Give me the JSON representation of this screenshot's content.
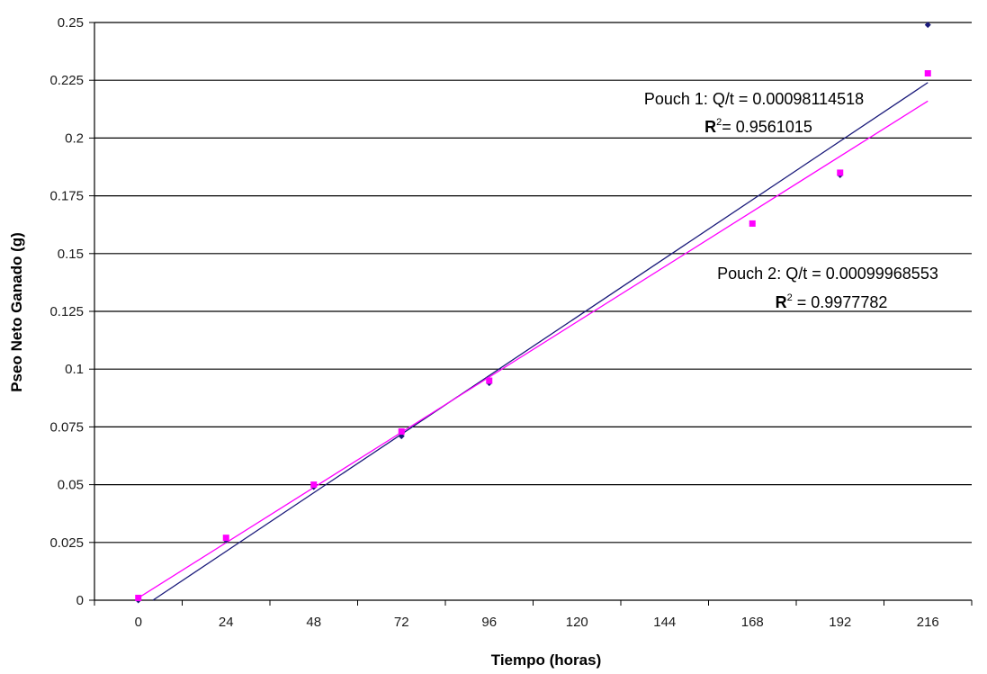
{
  "chart_data": {
    "type": "scatter",
    "title": "",
    "xlabel": "Tiempo (horas)",
    "ylabel": "Pseo Neto Ganado (g)",
    "xlim": [
      -12,
      228
    ],
    "ylim": [
      0,
      0.25
    ],
    "x_ticks": [
      0,
      24,
      48,
      72,
      96,
      120,
      144,
      168,
      192,
      216
    ],
    "x_tick_labels": [
      "0",
      "24",
      "48",
      "72",
      "96",
      "120",
      "144",
      "168",
      "192",
      "216"
    ],
    "y_ticks": [
      0,
      0.025,
      0.05,
      0.075,
      0.1,
      0.125,
      0.15,
      0.175,
      0.2,
      0.225,
      0.25
    ],
    "y_tick_labels": [
      "0",
      "0.025",
      "0.05",
      "0.075",
      "0.1",
      "0.125",
      "0.15",
      "0.175",
      "0.2",
      "0.225",
      "0.25"
    ],
    "grid": "horizontal",
    "legend": "none",
    "series": [
      {
        "color": "#1a1a7a",
        "marker": "diamond",
        "x": [
          0,
          24,
          48,
          72,
          96,
          168,
          192,
          216
        ],
        "y": [
          0,
          0.026,
          0.049,
          0.071,
          0.094,
          0.163,
          0.184,
          0.249
        ],
        "trendline": {
          "x": [
            4,
            216
          ],
          "y": [
            0,
            0.224
          ]
        }
      },
      {
        "color": "#ff00ff",
        "marker": "square",
        "x": [
          0,
          24,
          48,
          72,
          96,
          168,
          192,
          216
        ],
        "y": [
          0.001,
          0.027,
          0.05,
          0.073,
          0.095,
          0.163,
          0.185,
          0.228
        ],
        "trendline": {
          "x": [
            0,
            216
          ],
          "y": [
            0.001,
            0.216
          ]
        }
      }
    ],
    "annotations": [
      {
        "id": "pouch1",
        "equation": "Pouch 1: Q/t = 0.00098114518",
        "r2_label": "R",
        "r2_exp": "2",
        "r2_value": "= 0.9561015"
      },
      {
        "id": "pouch2",
        "equation": "Pouch 2: Q/t = 0.00099968553",
        "r2_label": "R",
        "r2_exp": "2",
        "r2_value": " = 0.9977782"
      }
    ]
  }
}
